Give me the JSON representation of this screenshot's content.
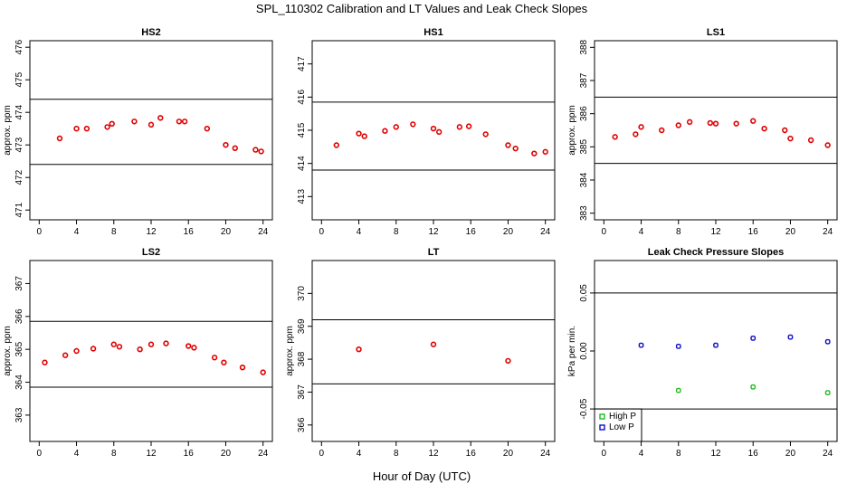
{
  "figure": {
    "title": "SPL_110302  Calibration and LT Values and Leak Check Slopes",
    "xlabel": "Hour of Day (UTC)"
  },
  "chart_data": [
    {
      "id": "hs2",
      "type": "scatter",
      "title": "HS2",
      "ylabel": "approx. ppm",
      "xlim": [
        -1,
        25
      ],
      "ylim": [
        470.7,
        476.2
      ],
      "xticks": [
        0,
        4,
        8,
        12,
        16,
        20,
        24
      ],
      "yticks": [
        471,
        472,
        473,
        474,
        475,
        476
      ],
      "reference_lines": [
        474.4,
        472.4
      ],
      "series": [
        {
          "color": "#e00000",
          "x": [
            2.2,
            4.0,
            5.1,
            7.3,
            7.8,
            10.2,
            12.0,
            13.0,
            15.0,
            15.6,
            18.0,
            20.0,
            21.0,
            23.2,
            23.8
          ],
          "y": [
            473.2,
            473.5,
            473.5,
            473.55,
            473.65,
            473.72,
            473.62,
            473.83,
            473.72,
            473.72,
            473.5,
            473.0,
            472.9,
            472.85,
            472.8
          ]
        }
      ]
    },
    {
      "id": "hs1",
      "type": "scatter",
      "title": "HS1",
      "ylabel": "",
      "xlim": [
        -1,
        25
      ],
      "ylim": [
        412.3,
        417.7
      ],
      "xticks": [
        0,
        4,
        8,
        12,
        16,
        20,
        24
      ],
      "yticks": [
        413,
        414,
        415,
        416,
        417
      ],
      "reference_lines": [
        415.85,
        413.8
      ],
      "series": [
        {
          "color": "#e00000",
          "x": [
            1.6,
            4.0,
            4.6,
            6.8,
            8.0,
            9.8,
            12.0,
            12.6,
            14.8,
            15.8,
            17.6,
            20.0,
            20.8,
            22.8,
            24.0
          ],
          "y": [
            414.55,
            414.9,
            414.82,
            414.98,
            415.1,
            415.18,
            415.05,
            414.95,
            415.1,
            415.12,
            414.88,
            414.55,
            414.45,
            414.3,
            414.35
          ]
        }
      ]
    },
    {
      "id": "ls1",
      "type": "scatter",
      "title": "LS1",
      "ylabel": "approx. ppm",
      "xlim": [
        -1,
        25
      ],
      "ylim": [
        382.8,
        388.2
      ],
      "xticks": [
        0,
        4,
        8,
        12,
        16,
        20,
        24
      ],
      "yticks": [
        383,
        384,
        385,
        386,
        387,
        388
      ],
      "reference_lines": [
        386.5,
        384.5
      ],
      "series": [
        {
          "color": "#e00000",
          "x": [
            1.2,
            3.4,
            4.0,
            6.2,
            8.0,
            9.2,
            11.4,
            12.0,
            14.2,
            16.0,
            17.2,
            19.4,
            20.0,
            22.2,
            24.0
          ],
          "y": [
            385.3,
            385.38,
            385.6,
            385.5,
            385.65,
            385.75,
            385.72,
            385.7,
            385.7,
            385.78,
            385.55,
            385.5,
            385.25,
            385.2,
            385.05
          ]
        }
      ]
    },
    {
      "id": "ls2",
      "type": "scatter",
      "title": "LS2",
      "ylabel": "approx. ppm",
      "xlim": [
        -1,
        25
      ],
      "ylim": [
        362.2,
        367.7
      ],
      "xticks": [
        0,
        4,
        8,
        12,
        16,
        20,
        24
      ],
      "yticks": [
        363,
        364,
        365,
        366,
        367
      ],
      "reference_lines": [
        365.85,
        363.85
      ],
      "series": [
        {
          "color": "#e00000",
          "x": [
            0.6,
            2.8,
            4.0,
            5.8,
            8.0,
            8.6,
            10.8,
            12.0,
            13.6,
            16.0,
            16.6,
            18.8,
            19.8,
            21.8,
            24.0
          ],
          "y": [
            364.6,
            364.82,
            364.95,
            365.02,
            365.15,
            365.08,
            365.0,
            365.15,
            365.18,
            365.1,
            365.05,
            364.75,
            364.6,
            364.45,
            364.3
          ]
        }
      ]
    },
    {
      "id": "lt",
      "type": "scatter",
      "title": "LT",
      "ylabel": "approx. ppm",
      "xlim": [
        -1,
        25
      ],
      "ylim": [
        365.5,
        371.0
      ],
      "xticks": [
        0,
        4,
        8,
        12,
        16,
        20,
        24
      ],
      "yticks": [
        366,
        367,
        368,
        369,
        370
      ],
      "reference_lines": [
        369.2,
        367.25
      ],
      "series": [
        {
          "color": "#e00000",
          "x": [
            4.0,
            12.0,
            20.0
          ],
          "y": [
            368.3,
            368.45,
            367.95
          ]
        }
      ]
    },
    {
      "id": "leak",
      "type": "scatter",
      "title": "Leak Check Pressure Slopes",
      "ylabel": "kPa per min.",
      "xlim": [
        -1,
        25
      ],
      "ylim": [
        -0.078,
        0.078
      ],
      "xticks": [
        0,
        4,
        8,
        12,
        16,
        20,
        24
      ],
      "yticks": [
        -0.05,
        0.0,
        0.05
      ],
      "ytick_labels": [
        "-0.05",
        "0.00",
        "0.05"
      ],
      "reference_lines": [
        0.05,
        -0.05
      ],
      "legend": {
        "position": "bottom-left",
        "entries": [
          "High P",
          "Low P"
        ]
      },
      "series": [
        {
          "name": "High P",
          "color": "#22bb22",
          "x": [
            8.0,
            16.0,
            24.0
          ],
          "y": [
            -0.034,
            -0.031,
            -0.036
          ]
        },
        {
          "name": "Low P",
          "color": "#1010c8",
          "x": [
            4.0,
            8.0,
            12.0,
            16.0,
            20.0,
            24.0
          ],
          "y": [
            0.005,
            0.004,
            0.005,
            0.011,
            0.012,
            0.008
          ]
        }
      ]
    }
  ]
}
